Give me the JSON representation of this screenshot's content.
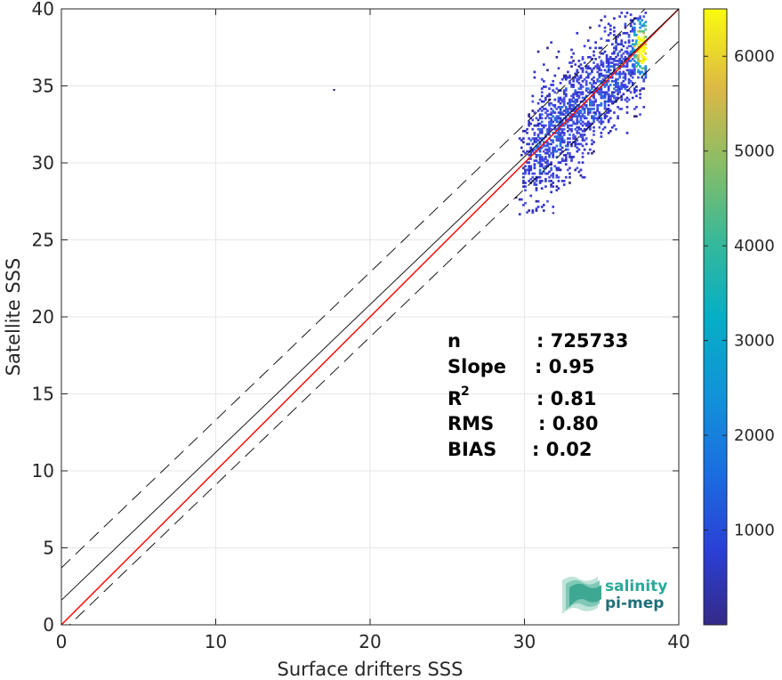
{
  "chart_data": {
    "type": "heatmap",
    "title": "",
    "xlabel": "Surface drifters SSS",
    "ylabel": "Satellite SSS",
    "xlim": [
      0,
      40
    ],
    "ylim": [
      0,
      40
    ],
    "x_ticks": [
      0,
      10,
      20,
      30,
      40
    ],
    "y_ticks": [
      0,
      5,
      10,
      15,
      20,
      25,
      30,
      35,
      40
    ],
    "grid": true,
    "colorbar": {
      "range": [
        0,
        6500
      ],
      "ticks": [
        1000,
        2000,
        3000,
        4000,
        5000,
        6000
      ],
      "colormap": "parula",
      "placement": "right"
    },
    "reference_lines": [
      {
        "description": "1:1 line",
        "color": "#ff0000",
        "style": "solid",
        "slope": 1.0,
        "intercept": 0.0
      },
      {
        "description": "regression fit",
        "color": "#000000",
        "style": "solid",
        "slope": 0.96,
        "intercept": 1.6
      },
      {
        "description": "upper bound",
        "color": "#000000",
        "style": "dashed",
        "slope": 0.96,
        "intercept": 3.7
      },
      {
        "description": "lower bound",
        "color": "#000000",
        "style": "dashed",
        "slope": 0.96,
        "intercept": -0.5
      }
    ],
    "density_region": {
      "x_range": [
        29.5,
        37.8
      ],
      "y_range": [
        26.5,
        40
      ],
      "peak": {
        "x": 37.5,
        "y": 37.5,
        "count": 6500
      }
    },
    "stats": [
      {
        "key": "n",
        "sup": "",
        "value": ": 725733"
      },
      {
        "key": "Slope",
        "sup": "",
        "value": ": 0.95"
      },
      {
        "key": "R",
        "sup": "2",
        "value": ": 0.81"
      },
      {
        "key": "RMS",
        "sup": "",
        "value": ": 0.80"
      },
      {
        "key": "BIAS",
        "sup": "",
        "value": ": 0.02"
      }
    ]
  },
  "logo": {
    "line1": "salinity",
    "line2": "pi-mep",
    "color1": "#2aa89a",
    "color2": "#1f6f78"
  }
}
